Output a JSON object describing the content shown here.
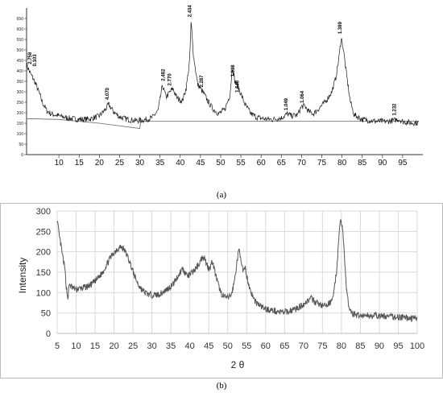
{
  "chart_data": [
    {
      "id": "a",
      "type": "line",
      "caption": "(a)",
      "xlim": [
        2,
        100
      ],
      "ylim": [
        0,
        700
      ],
      "x_ticks": [
        "10",
        "15",
        "20",
        "25",
        "30",
        "35",
        "40",
        "45",
        "50",
        "55",
        "60",
        "65",
        "70",
        "75",
        "80",
        "85",
        "90",
        "95"
      ],
      "y_ticks": [
        {
          "label": "650",
          "value": 650
        },
        {
          "label": "600",
          "value": 600
        },
        {
          "label": "550",
          "value": 550
        },
        {
          "label": "500",
          "value": 500
        },
        {
          "label": "450",
          "value": 450
        },
        {
          "label": "400",
          "value": 400
        },
        {
          "label": "350",
          "value": 350
        },
        {
          "label": "300",
          "value": 300
        },
        {
          "label": "250",
          "value": 250
        },
        {
          "label": "200",
          "value": 200
        },
        {
          "label": "150",
          "value": 150
        },
        {
          "label": "100",
          "value": 100
        },
        {
          "label": "50",
          "value": 50
        },
        {
          "label": "0",
          "value": 0
        }
      ],
      "profile": [
        [
          2,
          430
        ],
        [
          3,
          385
        ],
        [
          4,
          350
        ],
        [
          5,
          300
        ],
        [
          6,
          245
        ],
        [
          7,
          210
        ],
        [
          8,
          195
        ],
        [
          10,
          185
        ],
        [
          12,
          175
        ],
        [
          14,
          170
        ],
        [
          16,
          168
        ],
        [
          18,
          172
        ],
        [
          20,
          185
        ],
        [
          21.5,
          215
        ],
        [
          22.3,
          240
        ],
        [
          23.5,
          205
        ],
        [
          25,
          180
        ],
        [
          27,
          168
        ],
        [
          29,
          162
        ],
        [
          31,
          165
        ],
        [
          33,
          175
        ],
        [
          34.5,
          210
        ],
        [
          35.6,
          330
        ],
        [
          36.5,
          275
        ],
        [
          37.5,
          300
        ],
        [
          38.2,
          315
        ],
        [
          39.2,
          270
        ],
        [
          40.5,
          255
        ],
        [
          41.5,
          320
        ],
        [
          42.3,
          440
        ],
        [
          42.7,
          635
        ],
        [
          43.3,
          470
        ],
        [
          44.3,
          335
        ],
        [
          45.2,
          310
        ],
        [
          46,
          285
        ],
        [
          47,
          250
        ],
        [
          48,
          220
        ],
        [
          49.5,
          195
        ],
        [
          51,
          215
        ],
        [
          52.3,
          285
        ],
        [
          52.9,
          420
        ],
        [
          53.5,
          350
        ],
        [
          54.3,
          325
        ],
        [
          55.2,
          280
        ],
        [
          56,
          240
        ],
        [
          57.5,
          195
        ],
        [
          59,
          178
        ],
        [
          61,
          170
        ],
        [
          63,
          168
        ],
        [
          65,
          175
        ],
        [
          66.5,
          195
        ],
        [
          67.5,
          185
        ],
        [
          69,
          190
        ],
        [
          70,
          230
        ],
        [
          70.8,
          232
        ],
        [
          71.8,
          205
        ],
        [
          73,
          195
        ],
        [
          74.5,
          225
        ],
        [
          76,
          255
        ],
        [
          77.5,
          300
        ],
        [
          78.5,
          370
        ],
        [
          79.3,
          470
        ],
        [
          79.8,
          560
        ],
        [
          80.3,
          510
        ],
        [
          81,
          400
        ],
        [
          82,
          260
        ],
        [
          83,
          190
        ],
        [
          85,
          168
        ],
        [
          88,
          160
        ],
        [
          91,
          158
        ],
        [
          93,
          164
        ],
        [
          94,
          170
        ],
        [
          95,
          158
        ],
        [
          97,
          152
        ],
        [
          99,
          152
        ]
      ],
      "baseline": [
        [
          2,
          172
        ],
        [
          10,
          168
        ],
        [
          20,
          150
        ],
        [
          30,
          125
        ],
        [
          30.2,
          160
        ],
        [
          99,
          160
        ]
      ],
      "peaks": [
        {
          "x": 3.2,
          "y": 420,
          "label": "2.758"
        },
        {
          "x": 4.4,
          "y": 410,
          "label": "0.103"
        },
        {
          "x": 22.3,
          "y": 250,
          "label": "4.070"
        },
        {
          "x": 36.2,
          "y": 340,
          "label": "2.482"
        },
        {
          "x": 37.8,
          "y": 318,
          "label": "2.770"
        },
        {
          "x": 42.7,
          "y": 645,
          "label": "2.434"
        },
        {
          "x": 45.6,
          "y": 310,
          "label": "2.287"
        },
        {
          "x": 53.4,
          "y": 360,
          "label": "1.898"
        },
        {
          "x": 54.5,
          "y": 285,
          "label": "1.648"
        },
        {
          "x": 66.5,
          "y": 200,
          "label": "1.049"
        },
        {
          "x": 70.5,
          "y": 235,
          "label": "1.064"
        },
        {
          "x": 79.9,
          "y": 565,
          "label": "1.389"
        },
        {
          "x": 93.3,
          "y": 175,
          "label": "1.232"
        }
      ]
    },
    {
      "id": "b",
      "type": "line",
      "caption": "(b)",
      "xlabel": "2 θ",
      "ylabel": "Intensity",
      "xlim": [
        5,
        100
      ],
      "ylim": [
        0,
        300
      ],
      "grid": true,
      "x_ticks": [
        "5",
        "10",
        "15",
        "20",
        "25",
        "30",
        "35",
        "40",
        "45",
        "50",
        "55",
        "60",
        "65",
        "70",
        "75",
        "80",
        "85",
        "90",
        "95",
        "100"
      ],
      "y_ticks": [
        "0",
        "50",
        "100",
        "150",
        "200",
        "250",
        "300"
      ],
      "line_color": "#555555",
      "profile": [
        [
          5,
          280
        ],
        [
          5.5,
          240
        ],
        [
          6,
          215
        ],
        [
          6.5,
          185
        ],
        [
          7,
          160
        ],
        [
          7.4,
          115
        ],
        [
          7.8,
          85
        ],
        [
          8.2,
          120
        ],
        [
          9,
          112
        ],
        [
          10,
          108
        ],
        [
          11,
          110
        ],
        [
          12,
          112
        ],
        [
          13,
          115
        ],
        [
          14,
          120
        ],
        [
          15,
          128
        ],
        [
          16,
          138
        ],
        [
          17,
          150
        ],
        [
          18,
          168
        ],
        [
          19,
          185
        ],
        [
          20,
          198
        ],
        [
          21,
          208
        ],
        [
          21.8,
          212
        ],
        [
          22.5,
          208
        ],
        [
          23.5,
          190
        ],
        [
          24.5,
          165
        ],
        [
          25.5,
          138
        ],
        [
          26.5,
          118
        ],
        [
          27.5,
          105
        ],
        [
          28.5,
          98
        ],
        [
          29.5,
          95
        ],
        [
          30.5,
          94
        ],
        [
          31.5,
          95
        ],
        [
          32.5,
          98
        ],
        [
          33.5,
          105
        ],
        [
          34.5,
          112
        ],
        [
          35.5,
          120
        ],
        [
          36.5,
          135
        ],
        [
          37.5,
          150
        ],
        [
          38,
          160
        ],
        [
          38.8,
          148
        ],
        [
          39.5,
          140
        ],
        [
          40.5,
          148
        ],
        [
          41.5,
          158
        ],
        [
          42.5,
          172
        ],
        [
          43.2,
          185
        ],
        [
          43.8,
          190
        ],
        [
          44.3,
          172
        ],
        [
          45,
          160
        ],
        [
          45.6,
          168
        ],
        [
          46,
          178
        ],
        [
          46.5,
          155
        ],
        [
          47.3,
          125
        ],
        [
          48.2,
          100
        ],
        [
          49,
          90
        ],
        [
          50,
          87
        ],
        [
          51,
          95
        ],
        [
          51.8,
          130
        ],
        [
          52.5,
          180
        ],
        [
          53,
          205
        ],
        [
          53.5,
          185
        ],
        [
          54,
          150
        ],
        [
          54.6,
          158
        ],
        [
          55.2,
          132
        ],
        [
          56,
          105
        ],
        [
          57,
          82
        ],
        [
          58,
          72
        ],
        [
          59,
          65
        ],
        [
          60,
          60
        ],
        [
          62,
          56
        ],
        [
          64,
          52
        ],
        [
          65,
          52
        ],
        [
          66,
          54
        ],
        [
          67,
          58
        ],
        [
          68,
          60
        ],
        [
          69,
          65
        ],
        [
          70,
          72
        ],
        [
          71,
          80
        ],
        [
          72,
          85
        ],
        [
          73,
          78
        ],
        [
          74,
          72
        ],
        [
          75,
          68
        ],
        [
          76,
          68
        ],
        [
          77,
          75
        ],
        [
          78,
          100
        ],
        [
          78.8,
          160
        ],
        [
          79.4,
          240
        ],
        [
          79.8,
          282
        ],
        [
          80.3,
          260
        ],
        [
          80.8,
          190
        ],
        [
          81.3,
          110
        ],
        [
          82,
          62
        ],
        [
          83,
          48
        ],
        [
          85,
          44
        ],
        [
          87,
          44
        ],
        [
          89,
          43
        ],
        [
          91,
          42
        ],
        [
          93,
          41
        ],
        [
          95,
          40
        ],
        [
          97,
          38
        ],
        [
          99,
          37
        ],
        [
          100,
          36
        ]
      ]
    }
  ]
}
